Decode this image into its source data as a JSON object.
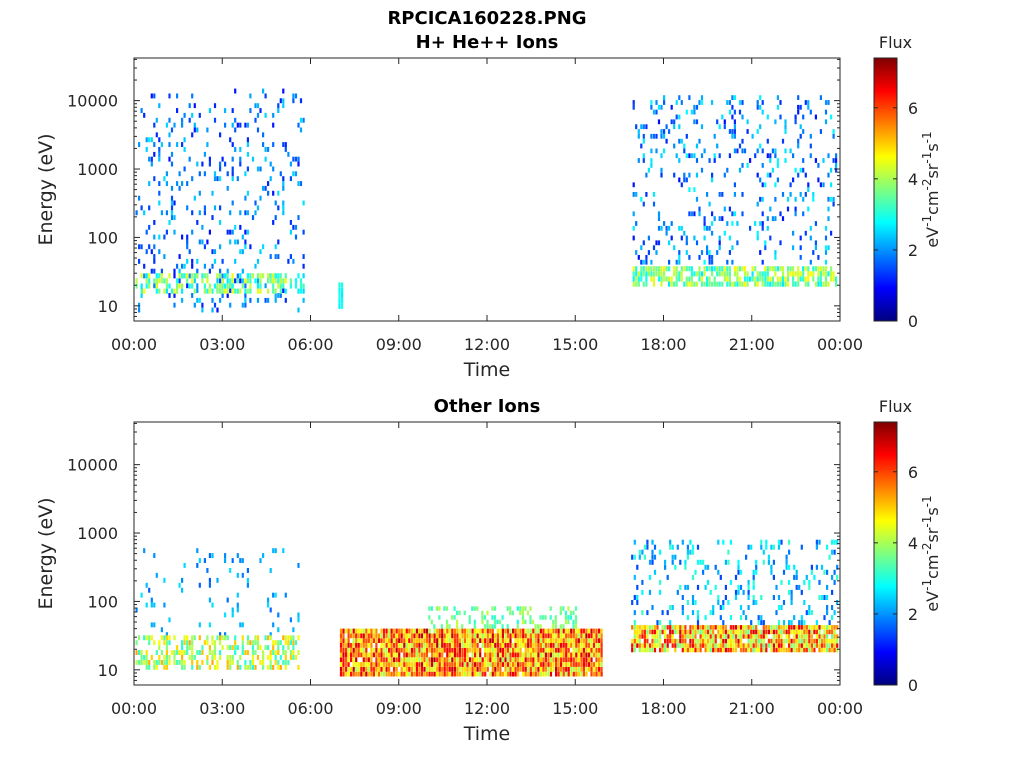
{
  "figure": {
    "title_line1": "RPCICA160228.PNG"
  },
  "colors": {
    "axis": "#262626",
    "colormap": [
      "#00007f",
      "#0000ff",
      "#007fff",
      "#00ffff",
      "#7fff7f",
      "#ffff00",
      "#ff7f00",
      "#ff0000",
      "#7f0000"
    ]
  },
  "chart_data": [
    {
      "type": "heatmap",
      "title": "H+ He++ Ions",
      "xlabel": "Time",
      "ylabel": "Energy (eV)",
      "x_ticks": [
        "00:00",
        "03:00",
        "06:00",
        "09:00",
        "12:00",
        "15:00",
        "18:00",
        "21:00",
        "00:00"
      ],
      "x_range_hours": [
        0,
        24
      ],
      "y_scale": "log",
      "y_ticks": [
        "10",
        "100",
        "1000",
        "10000"
      ],
      "y_range_eV": [
        6,
        42000
      ],
      "colorbar": {
        "title": "Flux",
        "label": "eV-1cm-2sr-1s-1",
        "ticks": [
          "0",
          "2",
          "4",
          "6"
        ],
        "range": [
          0,
          7.4
        ]
      },
      "regions": [
        {
          "t_start": 0.05,
          "t_end": 5.8,
          "e_min": 8,
          "e_max": 15000,
          "flux_min": 1.0,
          "flux_max": 2.6,
          "density": 0.12
        },
        {
          "t_start": 0.05,
          "t_end": 5.8,
          "e_min": 15,
          "e_max": 30,
          "flux_min": 2.5,
          "flux_max": 4.6,
          "density": 0.5
        },
        {
          "t_start": 6.95,
          "t_end": 7.05,
          "e_min": 9,
          "e_max": 22,
          "flux_min": 2.6,
          "flux_max": 3.0,
          "density": 1.0
        },
        {
          "t_start": 16.95,
          "t_end": 23.9,
          "e_min": 40,
          "e_max": 12000,
          "flux_min": 1.0,
          "flux_max": 2.8,
          "density": 0.13
        },
        {
          "t_start": 16.95,
          "t_end": 23.9,
          "e_min": 19,
          "e_max": 38,
          "flux_min": 2.6,
          "flux_max": 4.7,
          "density": 0.75
        }
      ]
    },
    {
      "type": "heatmap",
      "title": "Other Ions",
      "xlabel": "Time",
      "ylabel": "Energy (eV)",
      "x_ticks": [
        "00:00",
        "03:00",
        "06:00",
        "09:00",
        "12:00",
        "15:00",
        "18:00",
        "21:00",
        "00:00"
      ],
      "x_range_hours": [
        0,
        24
      ],
      "y_scale": "log",
      "y_ticks": [
        "10",
        "100",
        "1000",
        "10000"
      ],
      "y_range_eV": [
        6,
        42000
      ],
      "colorbar": {
        "title": "Flux",
        "label": "eV-1cm-2sr-1s-1",
        "ticks": [
          "0",
          "2",
          "4",
          "6"
        ],
        "range": [
          0,
          7.4
        ]
      },
      "regions": [
        {
          "t_start": 0.05,
          "t_end": 5.6,
          "e_min": 30,
          "e_max": 600,
          "flux_min": 1.6,
          "flux_max": 2.6,
          "density": 0.05
        },
        {
          "t_start": 0.05,
          "t_end": 5.6,
          "e_min": 10,
          "e_max": 32,
          "flux_min": 3.0,
          "flux_max": 5.3,
          "density": 0.55
        },
        {
          "t_start": 7.0,
          "t_end": 15.9,
          "e_min": 8,
          "e_max": 40,
          "flux_min": 4.0,
          "flux_max": 7.0,
          "density": 0.97
        },
        {
          "t_start": 10.0,
          "t_end": 15.0,
          "e_min": 40,
          "e_max": 85,
          "flux_min": 3.0,
          "flux_max": 4.2,
          "density": 0.35
        },
        {
          "t_start": 16.9,
          "t_end": 23.9,
          "e_min": 45,
          "e_max": 800,
          "flux_min": 1.4,
          "flux_max": 3.2,
          "density": 0.18
        },
        {
          "t_start": 16.9,
          "t_end": 23.9,
          "e_min": 18,
          "e_max": 45,
          "flux_min": 3.5,
          "flux_max": 6.8,
          "density": 0.9
        }
      ]
    }
  ]
}
